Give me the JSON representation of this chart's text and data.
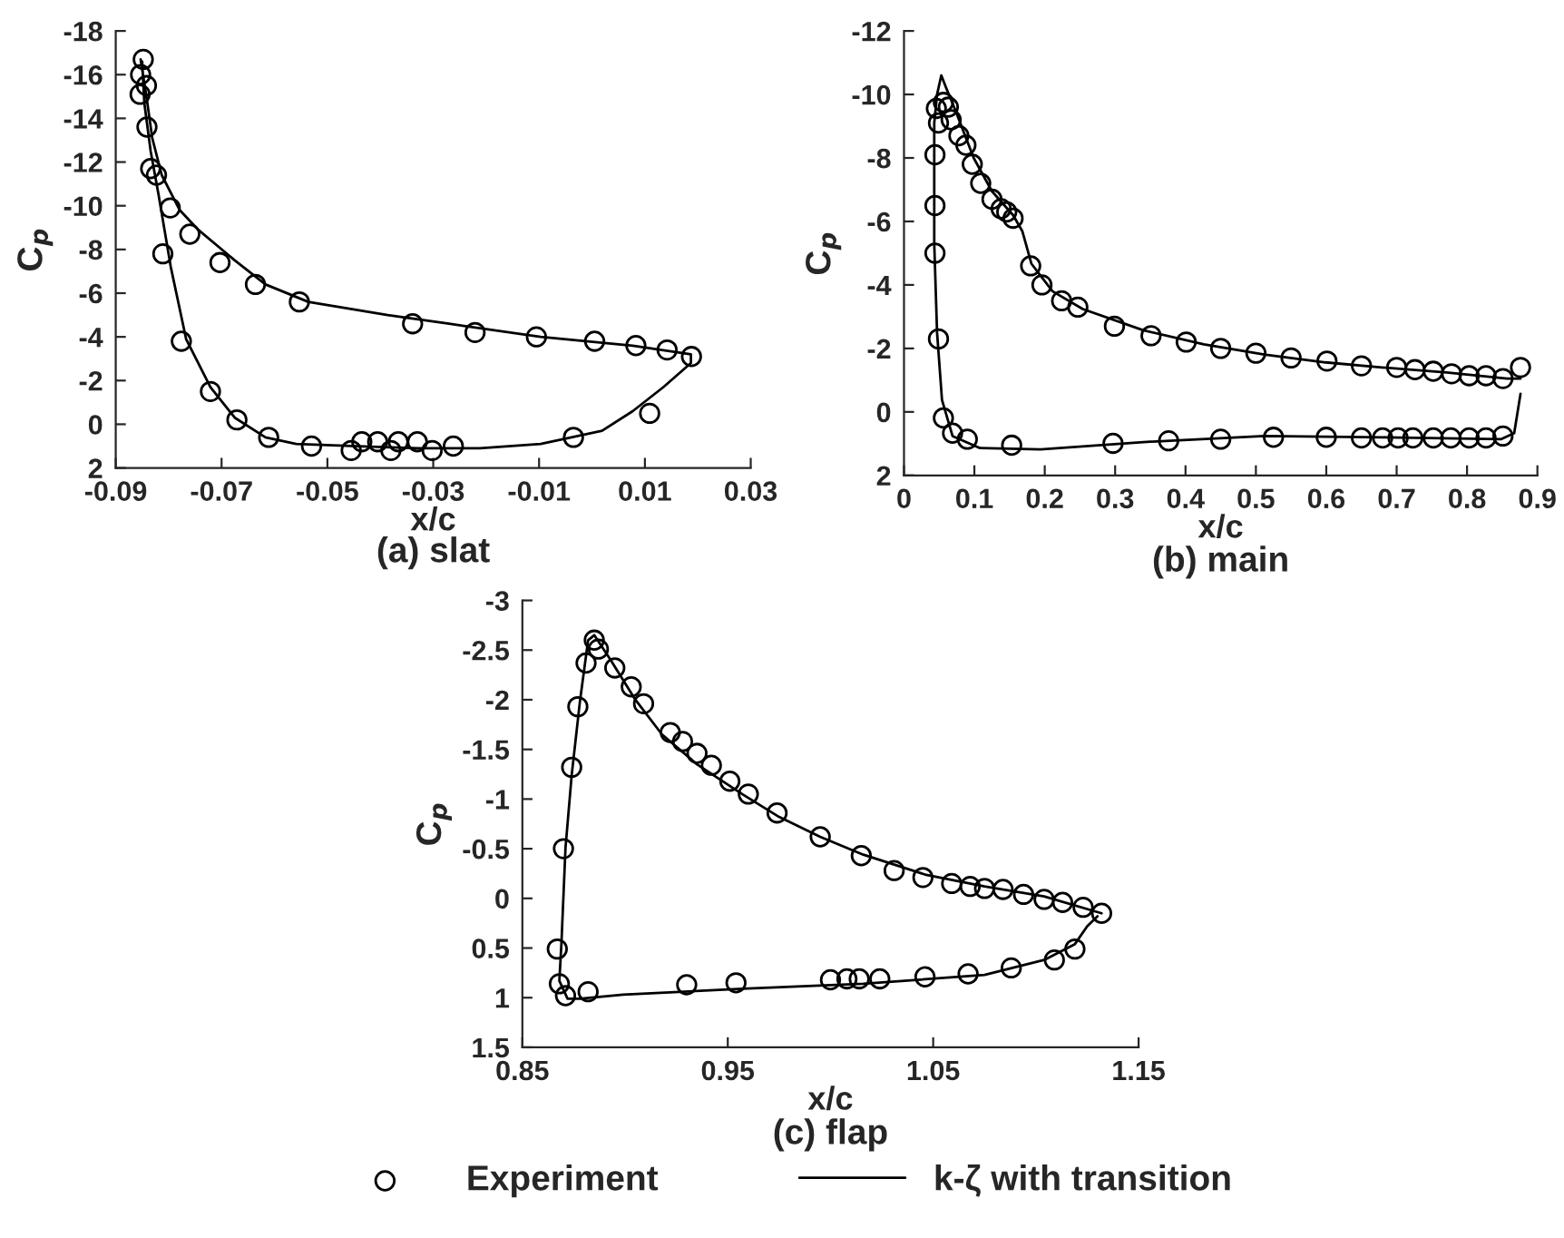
{
  "chart_data": [
    {
      "type": "scatter",
      "title": "(a) slat",
      "xlabel": "x/c",
      "ylabel": "C$_{p}$",
      "xlim": [
        -0.09,
        0.03
      ],
      "xticks": [
        -0.09,
        -0.07,
        -0.05,
        -0.03,
        -0.01,
        0.01,
        0.03
      ],
      "ylim": [
        2,
        -18
      ],
      "yticks": [
        -18,
        -16,
        -14,
        -12,
        -10,
        -8,
        -6,
        -4,
        -2,
        0,
        2
      ],
      "grid": false,
      "legend": false,
      "series": [
        {
          "marker": "circle",
          "color": "#000000",
          "x": [
            -0.0848,
            -0.0853,
            -0.0842,
            -0.0854,
            -0.0841,
            -0.0834,
            -0.0823,
            -0.0797,
            -0.076,
            -0.0703,
            -0.0636,
            -0.0553,
            -0.0339,
            -0.0221,
            -0.0105,
            0.0005,
            0.0083,
            0.0142,
            0.0188,
            0.0109,
            -0.0035,
            -0.0811,
            -0.0776,
            -0.0721,
            -0.0671,
            -0.0611,
            -0.053,
            -0.0455,
            -0.0435,
            -0.0405,
            -0.038,
            -0.0366,
            -0.033,
            -0.0302,
            -0.0262
          ],
          "values": [
            -16.7,
            -16.0,
            -15.5,
            -15.1,
            -13.6,
            -11.7,
            -11.4,
            -9.9,
            -8.7,
            -7.4,
            -6.4,
            -5.6,
            -4.6,
            -4.2,
            -4.0,
            -3.8,
            -3.6,
            -3.4,
            -3.1,
            -0.5,
            0.6,
            -7.8,
            -3.8,
            -1.5,
            -0.2,
            0.6,
            1.0,
            1.2,
            0.8,
            0.8,
            1.2,
            0.8,
            0.8,
            1.2,
            1.0
          ]
        },
        {
          "type": "line",
          "line_style": "solid",
          "color": "#000000",
          "x": [
            -0.0853,
            -0.0842,
            -0.0831,
            -0.0813,
            -0.0779,
            -0.0744,
            -0.0675,
            -0.0617,
            -0.0536,
            -0.0386,
            -0.027,
            -0.0097,
            0.0077,
            0.0187,
            0.0187,
            0.0135,
            0.0077,
            0.0019,
            -0.0097,
            -0.0212,
            -0.0328,
            -0.0443,
            -0.0559,
            -0.0617,
            -0.0675,
            -0.0721,
            -0.0767,
            -0.0796,
            -0.0819,
            -0.0834,
            -0.0846,
            -0.085
          ],
          "values": [
            -16.7,
            -15.0,
            -13.1,
            -11.4,
            -9.8,
            -8.9,
            -7.5,
            -6.4,
            -5.6,
            -5.0,
            -4.6,
            -4.0,
            -3.6,
            -3.2,
            -2.8,
            -1.7,
            -0.6,
            0.3,
            0.9,
            1.1,
            1.1,
            1.0,
            0.9,
            0.6,
            -0.3,
            -1.7,
            -3.9,
            -7.2,
            -10.5,
            -12.5,
            -14.7,
            -16.6
          ]
        }
      ]
    },
    {
      "type": "scatter",
      "title": "(b) main",
      "xlabel": "x/c",
      "ylabel": "C$_{p}$",
      "xlim": [
        0,
        0.9
      ],
      "xticks": [
        0,
        0.1,
        0.2,
        0.3,
        0.4,
        0.5,
        0.6,
        0.7,
        0.8,
        0.9
      ],
      "ylim": [
        2,
        -12
      ],
      "yticks": [
        -12,
        -10,
        -8,
        -6,
        -4,
        -2,
        0,
        2
      ],
      "grid": false,
      "legend": false,
      "series": [
        {
          "marker": "circle",
          "color": "#000000",
          "x": [
            0.046,
            0.056,
            0.049,
            0.063,
            0.067,
            0.078,
            0.088,
            0.097,
            0.109,
            0.125,
            0.138,
            0.146,
            0.155,
            0.18,
            0.196,
            0.224,
            0.247,
            0.299,
            0.351,
            0.401,
            0.45,
            0.5,
            0.55,
            0.601,
            0.65,
            0.7,
            0.726,
            0.752,
            0.778,
            0.803,
            0.827,
            0.851,
            0.876,
            0.044,
            0.044,
            0.044,
            0.049,
            0.056,
            0.069,
            0.09,
            0.153,
            0.297,
            0.376,
            0.45,
            0.525,
            0.6,
            0.65,
            0.68,
            0.702,
            0.723,
            0.752,
            0.777,
            0.803,
            0.827,
            0.851
          ],
          "values": [
            -9.56,
            -9.75,
            -9.1,
            -9.6,
            -9.2,
            -8.7,
            -8.4,
            -7.8,
            -7.2,
            -6.7,
            -6.4,
            -6.3,
            -6.1,
            -4.6,
            -4.0,
            -3.5,
            -3.3,
            -2.7,
            -2.4,
            -2.2,
            -2.0,
            -1.85,
            -1.7,
            -1.6,
            -1.45,
            -1.4,
            -1.33,
            -1.28,
            -1.2,
            -1.14,
            -1.14,
            -1.05,
            -1.4,
            -8.1,
            -6.5,
            -5.0,
            -2.3,
            0.19,
            0.67,
            0.86,
            1.05,
            0.99,
            0.91,
            0.86,
            0.8,
            0.8,
            0.82,
            0.82,
            0.82,
            0.82,
            0.82,
            0.82,
            0.82,
            0.82,
            0.76
          ]
        },
        {
          "type": "line",
          "line_style": "solid",
          "color": "#000000",
          "x": [
            0.876,
            0.867,
            0.848,
            0.685,
            0.512,
            0.34,
            0.194,
            0.108,
            0.069,
            0.054,
            0.047,
            0.043,
            0.043,
            0.047,
            0.053,
            0.06,
            0.073,
            0.099,
            0.125,
            0.155,
            0.168,
            0.181,
            0.211,
            0.254,
            0.34,
            0.426,
            0.512,
            0.599,
            0.685,
            0.771,
            0.857,
            0.876
          ],
          "values": [
            -0.57,
            0.67,
            0.86,
            0.8,
            0.76,
            0.95,
            1.18,
            1.14,
            0.76,
            -0.38,
            -2.5,
            -5.3,
            -9.1,
            -10.0,
            -10.6,
            -10.2,
            -9.5,
            -8.0,
            -6.95,
            -6.2,
            -5.7,
            -4.67,
            -3.8,
            -3.24,
            -2.57,
            -2.13,
            -1.81,
            -1.56,
            -1.39,
            -1.24,
            -1.05,
            -1.05
          ]
        }
      ]
    },
    {
      "type": "scatter",
      "title": "(c) flap",
      "xlabel": "x/c",
      "ylabel": "C$_{p}$",
      "xlim": [
        0.85,
        1.15
      ],
      "xticks": [
        0.85,
        0.95,
        1.05,
        1.15
      ],
      "ylim": [
        1.5,
        -3
      ],
      "yticks": [
        -3,
        -2.5,
        -2,
        -1.5,
        -1,
        -0.5,
        0,
        0.5,
        1,
        1.5
      ],
      "grid": false,
      "legend": "bottom",
      "series": [
        {
          "name": "Experiment",
          "marker": "circle",
          "color": "#000000",
          "x": [
            0.885,
            0.887,
            0.881,
            0.877,
            0.874,
            0.87,
            0.895,
            0.903,
            0.909,
            0.922,
            0.928,
            0.935,
            0.942,
            0.951,
            0.96,
            0.974,
            0.995,
            1.015,
            1.031,
            1.045,
            1.059,
            1.068,
            1.075,
            1.084,
            1.094,
            1.104,
            1.113,
            1.123,
            1.132,
            0.867,
            0.868,
            0.871,
            0.882,
            0.93,
            0.954,
            1.0,
            1.008,
            1.014,
            1.024,
            1.046,
            1.067,
            1.088,
            1.109,
            1.119
          ],
          "values": [
            -2.6,
            -2.51,
            -2.37,
            -1.93,
            -1.32,
            -0.5,
            -2.32,
            -2.13,
            -1.96,
            -1.67,
            -1.58,
            -1.46,
            -1.34,
            -1.18,
            -1.05,
            -0.86,
            -0.62,
            -0.43,
            -0.28,
            -0.21,
            -0.15,
            -0.12,
            -0.1,
            -0.09,
            -0.04,
            0.01,
            0.04,
            0.09,
            0.15,
            0.51,
            0.86,
            0.98,
            0.94,
            0.87,
            0.85,
            0.82,
            0.81,
            0.81,
            0.81,
            0.79,
            0.76,
            0.7,
            0.62,
            0.51
          ]
        },
        {
          "type": "line",
          "name": "k-ζ with transition",
          "line_style": "solid",
          "color": "#000000",
          "x": [
            1.132,
            1.104,
            1.075,
            1.046,
            1.016,
            0.995,
            0.975,
            0.957,
            0.935,
            0.918,
            0.905,
            0.893,
            0.885,
            0.882,
            0.878,
            0.874,
            0.871,
            0.869,
            0.868,
            0.872,
            0.878,
            0.899,
            0.957,
            1.016,
            1.075,
            1.104,
            1.119,
            1.125,
            1.13
          ],
          "values": [
            0.15,
            -0.02,
            -0.12,
            -0.24,
            -0.44,
            -0.62,
            -0.82,
            -1.05,
            -1.35,
            -1.65,
            -2.0,
            -2.4,
            -2.65,
            -2.6,
            -1.98,
            -1.24,
            -0.51,
            0.46,
            0.83,
            1.01,
            1.01,
            0.97,
            0.91,
            0.86,
            0.77,
            0.62,
            0.46,
            0.28,
            0.18
          ]
        }
      ]
    }
  ]
}
